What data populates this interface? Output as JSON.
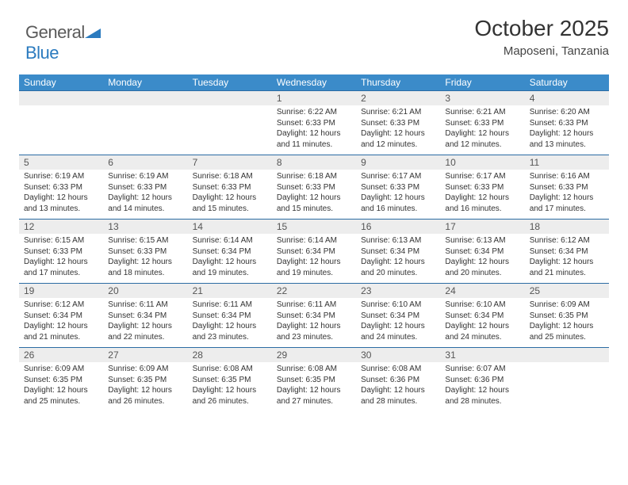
{
  "logo": {
    "text1": "General",
    "text2": "Blue"
  },
  "title": "October 2025",
  "subtitle": "Maposeni, Tanzania",
  "colors": {
    "header_bg": "#3b8bc9",
    "header_text": "#ffffff",
    "daynum_bg": "#ededed",
    "border": "#2b6ca3",
    "text": "#333333"
  },
  "day_labels": [
    "Sunday",
    "Monday",
    "Tuesday",
    "Wednesday",
    "Thursday",
    "Friday",
    "Saturday"
  ],
  "weeks": [
    [
      {
        "n": "",
        "sr": "",
        "ss": "",
        "dl": ""
      },
      {
        "n": "",
        "sr": "",
        "ss": "",
        "dl": ""
      },
      {
        "n": "",
        "sr": "",
        "ss": "",
        "dl": ""
      },
      {
        "n": "1",
        "sr": "Sunrise: 6:22 AM",
        "ss": "Sunset: 6:33 PM",
        "dl": "Daylight: 12 hours and 11 minutes."
      },
      {
        "n": "2",
        "sr": "Sunrise: 6:21 AM",
        "ss": "Sunset: 6:33 PM",
        "dl": "Daylight: 12 hours and 12 minutes."
      },
      {
        "n": "3",
        "sr": "Sunrise: 6:21 AM",
        "ss": "Sunset: 6:33 PM",
        "dl": "Daylight: 12 hours and 12 minutes."
      },
      {
        "n": "4",
        "sr": "Sunrise: 6:20 AM",
        "ss": "Sunset: 6:33 PM",
        "dl": "Daylight: 12 hours and 13 minutes."
      }
    ],
    [
      {
        "n": "5",
        "sr": "Sunrise: 6:19 AM",
        "ss": "Sunset: 6:33 PM",
        "dl": "Daylight: 12 hours and 13 minutes."
      },
      {
        "n": "6",
        "sr": "Sunrise: 6:19 AM",
        "ss": "Sunset: 6:33 PM",
        "dl": "Daylight: 12 hours and 14 minutes."
      },
      {
        "n": "7",
        "sr": "Sunrise: 6:18 AM",
        "ss": "Sunset: 6:33 PM",
        "dl": "Daylight: 12 hours and 15 minutes."
      },
      {
        "n": "8",
        "sr": "Sunrise: 6:18 AM",
        "ss": "Sunset: 6:33 PM",
        "dl": "Daylight: 12 hours and 15 minutes."
      },
      {
        "n": "9",
        "sr": "Sunrise: 6:17 AM",
        "ss": "Sunset: 6:33 PM",
        "dl": "Daylight: 12 hours and 16 minutes."
      },
      {
        "n": "10",
        "sr": "Sunrise: 6:17 AM",
        "ss": "Sunset: 6:33 PM",
        "dl": "Daylight: 12 hours and 16 minutes."
      },
      {
        "n": "11",
        "sr": "Sunrise: 6:16 AM",
        "ss": "Sunset: 6:33 PM",
        "dl": "Daylight: 12 hours and 17 minutes."
      }
    ],
    [
      {
        "n": "12",
        "sr": "Sunrise: 6:15 AM",
        "ss": "Sunset: 6:33 PM",
        "dl": "Daylight: 12 hours and 17 minutes."
      },
      {
        "n": "13",
        "sr": "Sunrise: 6:15 AM",
        "ss": "Sunset: 6:33 PM",
        "dl": "Daylight: 12 hours and 18 minutes."
      },
      {
        "n": "14",
        "sr": "Sunrise: 6:14 AM",
        "ss": "Sunset: 6:34 PM",
        "dl": "Daylight: 12 hours and 19 minutes."
      },
      {
        "n": "15",
        "sr": "Sunrise: 6:14 AM",
        "ss": "Sunset: 6:34 PM",
        "dl": "Daylight: 12 hours and 19 minutes."
      },
      {
        "n": "16",
        "sr": "Sunrise: 6:13 AM",
        "ss": "Sunset: 6:34 PM",
        "dl": "Daylight: 12 hours and 20 minutes."
      },
      {
        "n": "17",
        "sr": "Sunrise: 6:13 AM",
        "ss": "Sunset: 6:34 PM",
        "dl": "Daylight: 12 hours and 20 minutes."
      },
      {
        "n": "18",
        "sr": "Sunrise: 6:12 AM",
        "ss": "Sunset: 6:34 PM",
        "dl": "Daylight: 12 hours and 21 minutes."
      }
    ],
    [
      {
        "n": "19",
        "sr": "Sunrise: 6:12 AM",
        "ss": "Sunset: 6:34 PM",
        "dl": "Daylight: 12 hours and 21 minutes."
      },
      {
        "n": "20",
        "sr": "Sunrise: 6:11 AM",
        "ss": "Sunset: 6:34 PM",
        "dl": "Daylight: 12 hours and 22 minutes."
      },
      {
        "n": "21",
        "sr": "Sunrise: 6:11 AM",
        "ss": "Sunset: 6:34 PM",
        "dl": "Daylight: 12 hours and 23 minutes."
      },
      {
        "n": "22",
        "sr": "Sunrise: 6:11 AM",
        "ss": "Sunset: 6:34 PM",
        "dl": "Daylight: 12 hours and 23 minutes."
      },
      {
        "n": "23",
        "sr": "Sunrise: 6:10 AM",
        "ss": "Sunset: 6:34 PM",
        "dl": "Daylight: 12 hours and 24 minutes."
      },
      {
        "n": "24",
        "sr": "Sunrise: 6:10 AM",
        "ss": "Sunset: 6:34 PM",
        "dl": "Daylight: 12 hours and 24 minutes."
      },
      {
        "n": "25",
        "sr": "Sunrise: 6:09 AM",
        "ss": "Sunset: 6:35 PM",
        "dl": "Daylight: 12 hours and 25 minutes."
      }
    ],
    [
      {
        "n": "26",
        "sr": "Sunrise: 6:09 AM",
        "ss": "Sunset: 6:35 PM",
        "dl": "Daylight: 12 hours and 25 minutes."
      },
      {
        "n": "27",
        "sr": "Sunrise: 6:09 AM",
        "ss": "Sunset: 6:35 PM",
        "dl": "Daylight: 12 hours and 26 minutes."
      },
      {
        "n": "28",
        "sr": "Sunrise: 6:08 AM",
        "ss": "Sunset: 6:35 PM",
        "dl": "Daylight: 12 hours and 26 minutes."
      },
      {
        "n": "29",
        "sr": "Sunrise: 6:08 AM",
        "ss": "Sunset: 6:35 PM",
        "dl": "Daylight: 12 hours and 27 minutes."
      },
      {
        "n": "30",
        "sr": "Sunrise: 6:08 AM",
        "ss": "Sunset: 6:36 PM",
        "dl": "Daylight: 12 hours and 28 minutes."
      },
      {
        "n": "31",
        "sr": "Sunrise: 6:07 AM",
        "ss": "Sunset: 6:36 PM",
        "dl": "Daylight: 12 hours and 28 minutes."
      },
      {
        "n": "",
        "sr": "",
        "ss": "",
        "dl": ""
      }
    ]
  ]
}
